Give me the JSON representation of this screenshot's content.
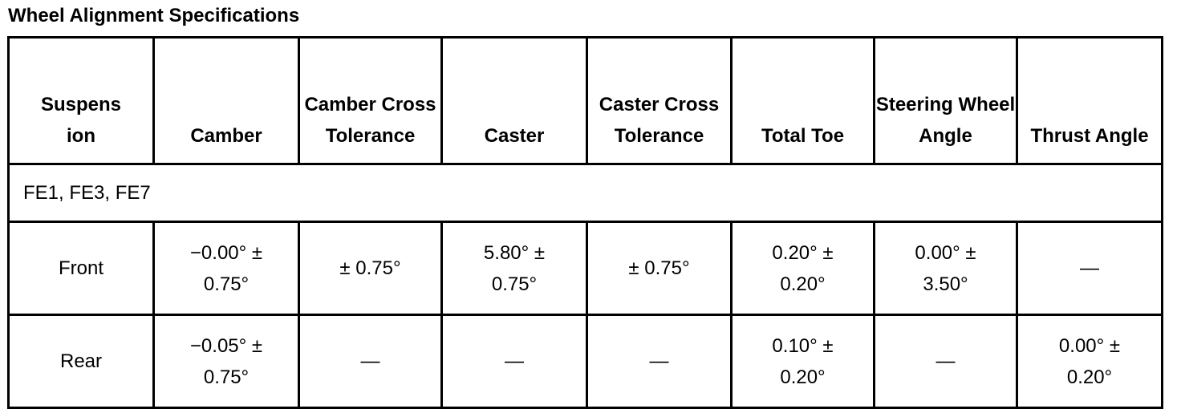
{
  "title": "Wheel Alignment Specifications",
  "table": {
    "columns": [
      "Suspension",
      "Camber",
      "Camber Cross Tolerance",
      "Caster",
      "Caster Cross Tolerance",
      "Total Toe",
      "Steering Wheel Angle",
      "Thrust Angle"
    ],
    "rows": [
      [
        "FE1, FE3, FE7"
      ],
      [
        "Front",
        "−0.00° ± 0.75°",
        "± 0.75°",
        "5.80° ± 0.75°",
        "± 0.75°",
        "0.20° ± 0.20°",
        "0.00° ± 3.50°",
        "—"
      ],
      [
        "Rear",
        "−0.05° ± 0.75°",
        "—",
        "—",
        "—",
        "0.10° ± 0.20°",
        "—",
        "0.00° ± 0.20°"
      ]
    ]
  }
}
